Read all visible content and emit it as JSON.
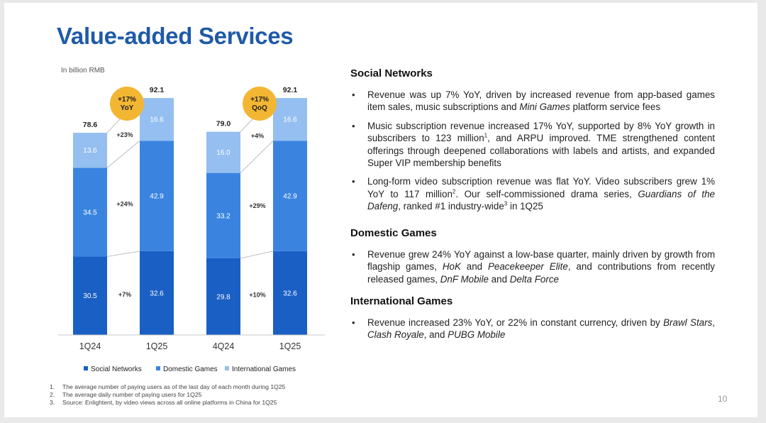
{
  "title": "Value-added Services",
  "page_number": "10",
  "chart_data": {
    "type": "bar",
    "stacked": true,
    "unit_label": "In billion RMB",
    "categories": [
      "1Q24",
      "1Q25",
      "4Q24",
      "1Q25"
    ],
    "series": [
      {
        "name": "Social Networks",
        "color": "#1a5fc4",
        "values": [
          30.5,
          32.6,
          29.8,
          32.6
        ]
      },
      {
        "name": "Domestic Games",
        "color": "#3a84e0",
        "values": [
          34.5,
          42.9,
          33.2,
          42.9
        ]
      },
      {
        "name": "International Games",
        "color": "#94bff0",
        "values": [
          13.6,
          16.6,
          16.0,
          16.6
        ]
      }
    ],
    "value_labels": [
      [
        "30.5",
        "34.5",
        "13.6"
      ],
      [
        "32.6",
        "42.9",
        "16.6"
      ],
      [
        "29.8",
        "33.2",
        "16.0"
      ],
      [
        "32.6",
        "42.9",
        "16.6"
      ]
    ],
    "totals": [
      "78.6",
      "92.1",
      "79.0",
      "92.1"
    ],
    "growth_labels": {
      "yoy": [
        "+7%",
        "+24%",
        "+23%"
      ],
      "qoq": [
        "+10%",
        "+29%",
        "+4%"
      ]
    },
    "badges": [
      {
        "line1": "+17%",
        "line2": "YoY"
      },
      {
        "line1": "+17%",
        "line2": "QoQ"
      }
    ],
    "badge_color": "#f2b632",
    "ylim": [
      0,
      100
    ]
  },
  "sections": [
    {
      "heading": "Social Networks",
      "bullets": [
        [
          {
            "t": "Revenue was up 7% YoY, driven by increased revenue from app-based games item sales, music subscriptions and "
          },
          {
            "t": "Mini Games",
            "i": true
          },
          {
            "t": " platform service fees"
          }
        ],
        [
          {
            "t": "Music subscription revenue increased 17% YoY, supported by 8% YoY growth in subscribers to 123 million"
          },
          {
            "t": "1",
            "sup": true
          },
          {
            "t": ", and ARPU improved. TME strengthened content offerings through deepened collaborations with labels and artists, and expanded Super VIP membership benefits"
          }
        ],
        [
          {
            "t": "Long-form video subscription revenue was flat YoY. Video subscribers grew 1% YoY to 117 million"
          },
          {
            "t": "2",
            "sup": true
          },
          {
            "t": ". Our self-commissioned drama series, "
          },
          {
            "t": "Guardians of the Dafeng",
            "i": true
          },
          {
            "t": ", ranked #1 industry-wide"
          },
          {
            "t": "3",
            "sup": true
          },
          {
            "t": " in 1Q25"
          }
        ]
      ]
    },
    {
      "heading": "Domestic Games",
      "bullets": [
        [
          {
            "t": "Revenue grew 24% YoY against a low-base quarter, mainly driven by growth from flagship games, "
          },
          {
            "t": "HoK",
            "i": true
          },
          {
            "t": " and "
          },
          {
            "t": "Peacekeeper Elite",
            "i": true
          },
          {
            "t": ", and contributions from recently released games, "
          },
          {
            "t": "DnF Mobile",
            "i": true
          },
          {
            "t": " and "
          },
          {
            "t": "Delta Force",
            "i": true
          }
        ]
      ]
    },
    {
      "heading": "International Games",
      "bullets": [
        [
          {
            "t": "Revenue increased 23% YoY, or 22% in constant currency, driven by "
          },
          {
            "t": "Brawl Stars",
            "i": true
          },
          {
            "t": ", "
          },
          {
            "t": "Clash Royale",
            "i": true
          },
          {
            "t": ", and "
          },
          {
            "t": "PUBG Mobile",
            "i": true
          }
        ]
      ]
    }
  ],
  "footnotes": [
    {
      "num": "1.",
      "text": "The average number of paying users as of the last day of each month during 1Q25"
    },
    {
      "num": "2.",
      "text": "The average daily number of paying users for 1Q25"
    },
    {
      "num": "3.",
      "text": "Source: Enlightent, by video views across all online platforms in China for 1Q25"
    }
  ]
}
